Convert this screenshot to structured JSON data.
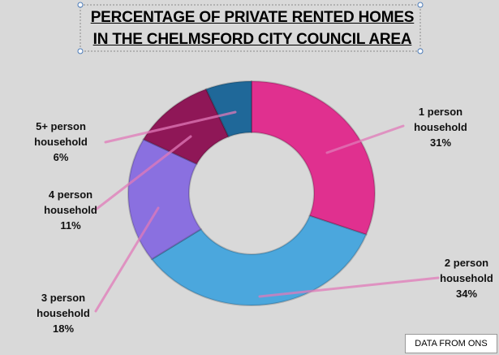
{
  "chart_data": {
    "type": "donut",
    "title": "PERCENTAGE OF PRIVATE RENTED HOMES IN THE CHELMSFORD CITY COUNCIL AREA",
    "categories": [
      "1 person household",
      "2 person household",
      "3 person household",
      "4 person household",
      "5+ person household"
    ],
    "values": [
      31,
      34,
      18,
      11,
      6
    ],
    "value_labels": [
      "31%",
      "34%",
      "18%",
      "11%",
      "6%"
    ],
    "colors": [
      "#e0308f",
      "#4ba7dd",
      "#8a70e0",
      "#8f1757",
      "#1f6899"
    ],
    "annotation": "DATA FROM ONS"
  }
}
